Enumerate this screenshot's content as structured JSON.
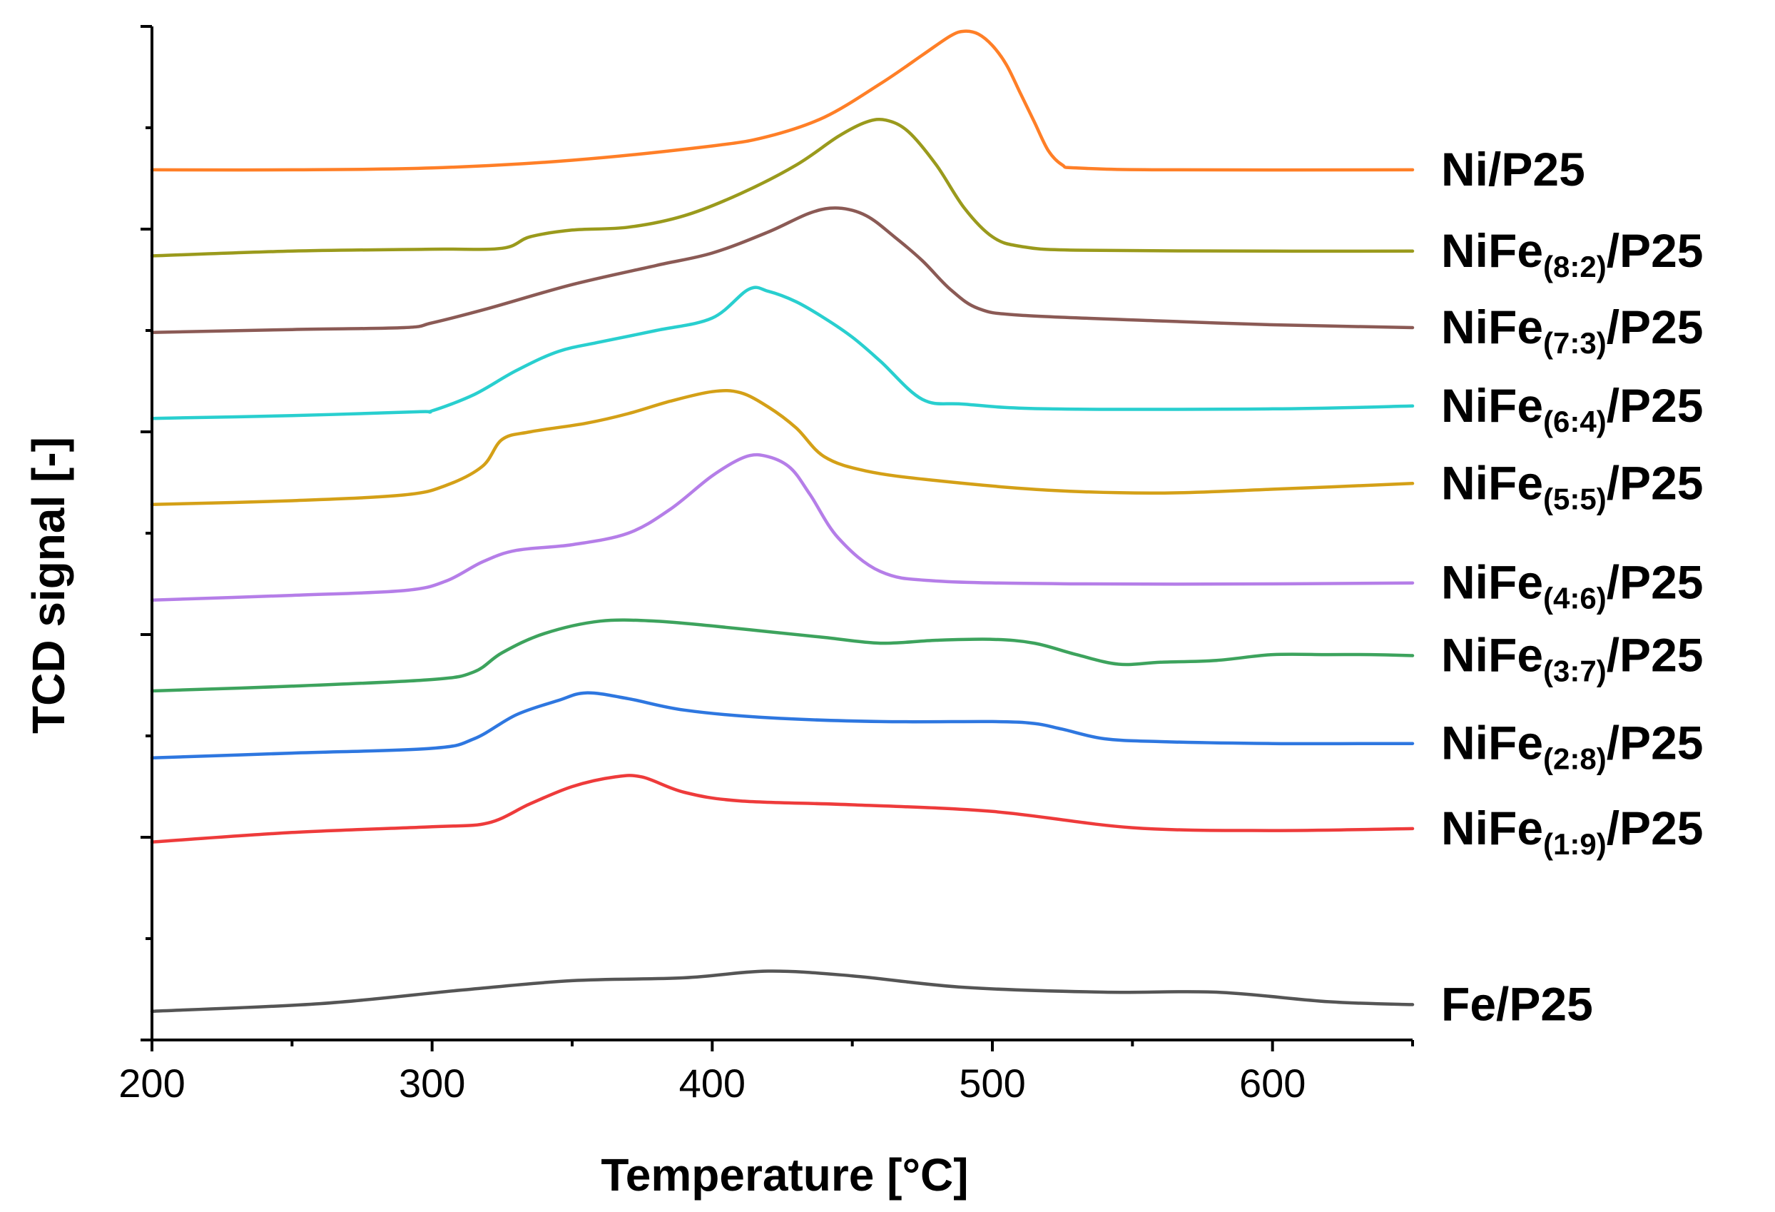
{
  "chart_data": {
    "type": "line",
    "xlabel": "Temperature [°C]",
    "ylabel": "TCD signal [-]",
    "xlim": [
      200,
      650
    ],
    "x_ticks": [
      200,
      300,
      400,
      500,
      600
    ],
    "y_ticks_unlabeled": 10,
    "offset_stacked": true,
    "series": [
      {
        "name": "Ni/P25",
        "label_main": "Ni/P25",
        "label_sub": "",
        "label_tail": "",
        "color": "#FF7F27",
        "baseline": 9.1,
        "points": [
          [
            200,
            0
          ],
          [
            250,
            0
          ],
          [
            300,
            0.02
          ],
          [
            350,
            0.1
          ],
          [
            400,
            0.25
          ],
          [
            420,
            0.35
          ],
          [
            440,
            0.55
          ],
          [
            460,
            0.9
          ],
          [
            475,
            1.2
          ],
          [
            485,
            1.4
          ],
          [
            490,
            1.45
          ],
          [
            495,
            1.42
          ],
          [
            500,
            1.3
          ],
          [
            505,
            1.1
          ],
          [
            510,
            0.8
          ],
          [
            515,
            0.5
          ],
          [
            520,
            0.2
          ],
          [
            525,
            0.05
          ],
          [
            530,
            0.02
          ],
          [
            560,
            0.0
          ],
          [
            650,
            0.0
          ]
        ]
      },
      {
        "name": "NiFe(8:2)/P25",
        "label_main": "NiFe",
        "label_sub": "(8:2)",
        "label_tail": "/P25",
        "color": "#9A9A1C",
        "baseline": 8.2,
        "points": [
          [
            200,
            0
          ],
          [
            250,
            0.05
          ],
          [
            300,
            0.07
          ],
          [
            325,
            0.08
          ],
          [
            335,
            0.2
          ],
          [
            350,
            0.27
          ],
          [
            370,
            0.3
          ],
          [
            390,
            0.42
          ],
          [
            410,
            0.65
          ],
          [
            430,
            0.95
          ],
          [
            445,
            1.25
          ],
          [
            455,
            1.4
          ],
          [
            462,
            1.42
          ],
          [
            470,
            1.3
          ],
          [
            480,
            0.95
          ],
          [
            490,
            0.5
          ],
          [
            500,
            0.2
          ],
          [
            510,
            0.1
          ],
          [
            530,
            0.06
          ],
          [
            600,
            0.05
          ],
          [
            650,
            0.05
          ]
        ]
      },
      {
        "name": "NiFe(7:3)/P25",
        "label_main": "NiFe",
        "label_sub": "(7:3)",
        "label_tail": "/P25",
        "color": "#8B5A55",
        "baseline": 7.4,
        "points": [
          [
            200,
            0
          ],
          [
            250,
            0.03
          ],
          [
            290,
            0.05
          ],
          [
            300,
            0.1
          ],
          [
            320,
            0.25
          ],
          [
            350,
            0.5
          ],
          [
            380,
            0.7
          ],
          [
            400,
            0.83
          ],
          [
            420,
            1.05
          ],
          [
            435,
            1.25
          ],
          [
            445,
            1.3
          ],
          [
            455,
            1.22
          ],
          [
            465,
            1.0
          ],
          [
            475,
            0.75
          ],
          [
            485,
            0.45
          ],
          [
            495,
            0.25
          ],
          [
            510,
            0.18
          ],
          [
            560,
            0.12
          ],
          [
            600,
            0.08
          ],
          [
            650,
            0.05
          ]
        ]
      },
      {
        "name": "NiFe(6:4)/P25",
        "label_main": "NiFe",
        "label_sub": "(6:4)",
        "label_tail": "/P25",
        "color": "#29CFCF",
        "baseline": 6.5,
        "points": [
          [
            200,
            0
          ],
          [
            250,
            0.03
          ],
          [
            295,
            0.07
          ],
          [
            300,
            0.08
          ],
          [
            315,
            0.25
          ],
          [
            330,
            0.5
          ],
          [
            345,
            0.7
          ],
          [
            360,
            0.8
          ],
          [
            380,
            0.92
          ],
          [
            400,
            1.05
          ],
          [
            413,
            1.35
          ],
          [
            420,
            1.33
          ],
          [
            430,
            1.22
          ],
          [
            440,
            1.05
          ],
          [
            450,
            0.85
          ],
          [
            460,
            0.6
          ],
          [
            475,
            0.2
          ],
          [
            490,
            0.15
          ],
          [
            520,
            0.1
          ],
          [
            600,
            0.1
          ],
          [
            650,
            0.13
          ]
        ]
      },
      {
        "name": "NiFe(5:5)/P25",
        "label_main": "NiFe",
        "label_sub": "(5:5)",
        "label_tail": "/P25",
        "color": "#D4A017",
        "baseline": 5.6,
        "points": [
          [
            200,
            0
          ],
          [
            250,
            0.04
          ],
          [
            290,
            0.1
          ],
          [
            305,
            0.2
          ],
          [
            318,
            0.4
          ],
          [
            325,
            0.68
          ],
          [
            335,
            0.76
          ],
          [
            355,
            0.85
          ],
          [
            370,
            0.95
          ],
          [
            385,
            1.08
          ],
          [
            400,
            1.18
          ],
          [
            410,
            1.17
          ],
          [
            420,
            1.02
          ],
          [
            430,
            0.8
          ],
          [
            440,
            0.5
          ],
          [
            455,
            0.35
          ],
          [
            480,
            0.25
          ],
          [
            520,
            0.15
          ],
          [
            560,
            0.12
          ],
          [
            600,
            0.16
          ],
          [
            650,
            0.22
          ]
        ]
      },
      {
        "name": "NiFe(4:6)/P25",
        "label_main": "NiFe",
        "label_sub": "(4:6)",
        "label_tail": "/P25",
        "color": "#B57EE8",
        "baseline": 4.6,
        "points": [
          [
            200,
            0
          ],
          [
            250,
            0.05
          ],
          [
            290,
            0.1
          ],
          [
            305,
            0.2
          ],
          [
            318,
            0.4
          ],
          [
            330,
            0.52
          ],
          [
            350,
            0.58
          ],
          [
            370,
            0.7
          ],
          [
            385,
            0.95
          ],
          [
            400,
            1.3
          ],
          [
            412,
            1.5
          ],
          [
            420,
            1.5
          ],
          [
            428,
            1.38
          ],
          [
            435,
            1.1
          ],
          [
            445,
            0.65
          ],
          [
            460,
            0.3
          ],
          [
            480,
            0.2
          ],
          [
            530,
            0.17
          ],
          [
            600,
            0.17
          ],
          [
            650,
            0.18
          ]
        ]
      },
      {
        "name": "NiFe(3:7)/P25",
        "label_main": "NiFe",
        "label_sub": "(3:7)",
        "label_tail": "/P25",
        "color": "#3DA35D",
        "baseline": 3.65,
        "points": [
          [
            200,
            0
          ],
          [
            250,
            0.05
          ],
          [
            300,
            0.12
          ],
          [
            315,
            0.2
          ],
          [
            325,
            0.4
          ],
          [
            340,
            0.6
          ],
          [
            360,
            0.73
          ],
          [
            380,
            0.73
          ],
          [
            400,
            0.68
          ],
          [
            420,
            0.62
          ],
          [
            440,
            0.56
          ],
          [
            460,
            0.5
          ],
          [
            480,
            0.53
          ],
          [
            500,
            0.54
          ],
          [
            515,
            0.5
          ],
          [
            530,
            0.38
          ],
          [
            545,
            0.28
          ],
          [
            560,
            0.3
          ],
          [
            580,
            0.32
          ],
          [
            600,
            0.38
          ],
          [
            620,
            0.38
          ],
          [
            635,
            0.38
          ],
          [
            650,
            0.37
          ]
        ]
      },
      {
        "name": "NiFe(2:8)/P25",
        "label_main": "NiFe",
        "label_sub": "(2:8)",
        "label_tail": "/P25",
        "color": "#2E77E0",
        "baseline": 2.95,
        "points": [
          [
            200,
            0
          ],
          [
            250,
            0.05
          ],
          [
            300,
            0.1
          ],
          [
            315,
            0.2
          ],
          [
            330,
            0.45
          ],
          [
            345,
            0.6
          ],
          [
            355,
            0.68
          ],
          [
            370,
            0.62
          ],
          [
            390,
            0.5
          ],
          [
            420,
            0.42
          ],
          [
            460,
            0.38
          ],
          [
            500,
            0.38
          ],
          [
            515,
            0.36
          ],
          [
            525,
            0.3
          ],
          [
            540,
            0.2
          ],
          [
            560,
            0.17
          ],
          [
            600,
            0.15
          ],
          [
            640,
            0.15
          ],
          [
            650,
            0.15
          ]
        ]
      },
      {
        "name": "NiFe(1:9)/P25",
        "label_main": "NiFe",
        "label_sub": "(1:9)",
        "label_tail": "/P25",
        "color": "#EE3B3B",
        "baseline": 2.07,
        "points": [
          [
            200,
            0
          ],
          [
            250,
            0.1
          ],
          [
            300,
            0.16
          ],
          [
            320,
            0.2
          ],
          [
            335,
            0.4
          ],
          [
            350,
            0.58
          ],
          [
            365,
            0.68
          ],
          [
            375,
            0.68
          ],
          [
            390,
            0.52
          ],
          [
            410,
            0.43
          ],
          [
            450,
            0.39
          ],
          [
            500,
            0.32
          ],
          [
            550,
            0.15
          ],
          [
            600,
            0.12
          ],
          [
            650,
            0.14
          ]
        ]
      },
      {
        "name": "Fe/P25",
        "label_main": "Fe/P25",
        "label_sub": "",
        "label_tail": "",
        "color": "#555555",
        "baseline": 0.3,
        "points": [
          [
            200,
            0
          ],
          [
            260,
            0.08
          ],
          [
            310,
            0.22
          ],
          [
            350,
            0.32
          ],
          [
            390,
            0.35
          ],
          [
            420,
            0.42
          ],
          [
            450,
            0.37
          ],
          [
            490,
            0.25
          ],
          [
            540,
            0.2
          ],
          [
            580,
            0.2
          ],
          [
            620,
            0.1
          ],
          [
            650,
            0.07
          ]
        ]
      }
    ]
  }
}
